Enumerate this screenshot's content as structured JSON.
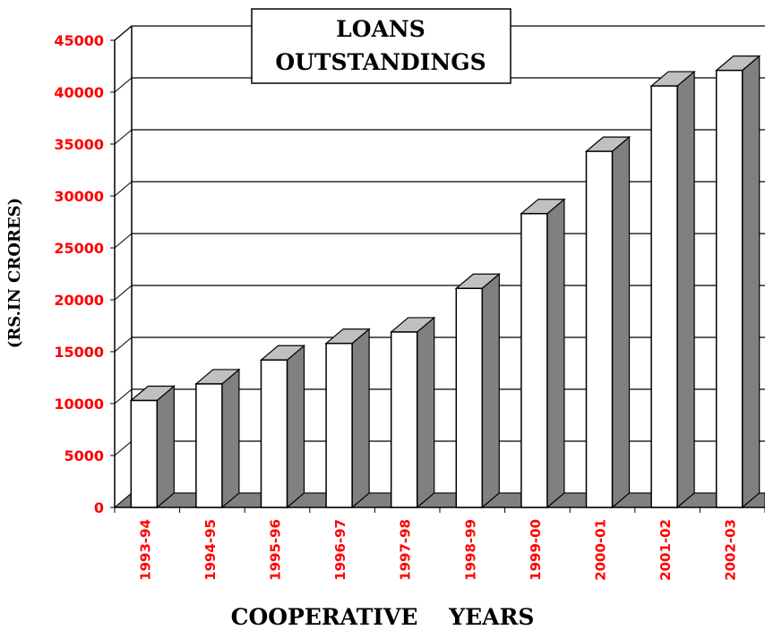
{
  "chart_data": {
    "type": "bar",
    "title": "LOANS OUTSTANDINGS",
    "title_lines": [
      "LOANS",
      "OUTSTANDINGS"
    ],
    "xlabel": "COOPERATIVE    YEARS",
    "ylabel": "(RS.IN CRORES)",
    "categories": [
      "1993-94",
      "1994-95",
      "1995-96",
      "1996-97",
      "1997-98",
      "1998-99",
      "1999-00",
      "2000-01",
      "2001-02",
      "2002-03"
    ],
    "values": [
      10300,
      11900,
      14200,
      15800,
      16900,
      21100,
      28300,
      34300,
      40600,
      42100
    ],
    "ylim": [
      0,
      45000
    ],
    "yticks": [
      "0",
      "5000",
      "10000",
      "15000",
      "20000",
      "25000",
      "30000",
      "35000",
      "40000",
      "45000"
    ],
    "grid": true,
    "legend": "none",
    "colors": {
      "bar_front": "#ffffff",
      "bar_side": "#808080",
      "bar_top": "#c0c0c0",
      "tick_labels": "#ff0000",
      "category_labels": "#ff0000",
      "axis_titles": "#000000"
    }
  }
}
